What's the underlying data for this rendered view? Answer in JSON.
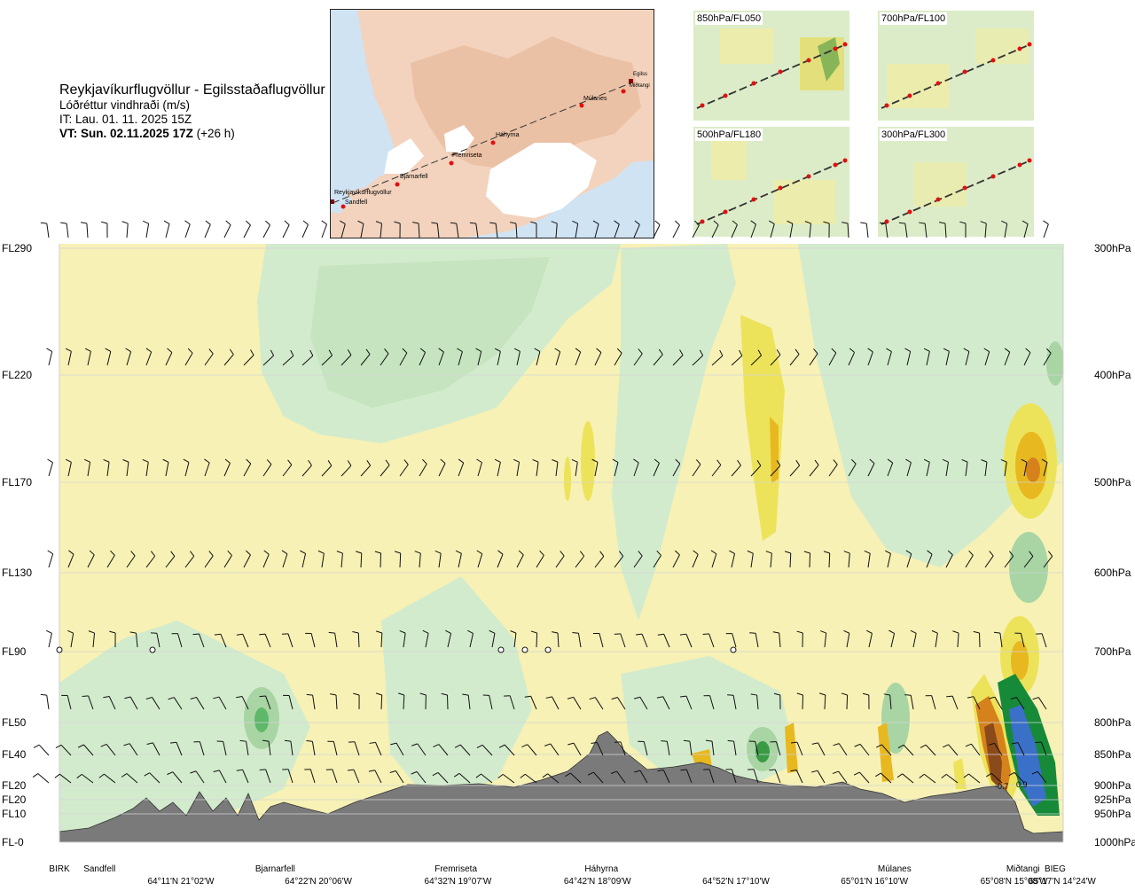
{
  "header": {
    "route": "Reykjavíkurflugvöllur - Egilsstaðaflugvöllur",
    "variable": "Lóðréttur vindhraði (m/s)",
    "it": "IT: Lau. 01. 11. 2025 15Z",
    "vt_bold": "VT: Sun. 02.11.2025 17Z",
    "vt_offset": " (+26 h)"
  },
  "map": {
    "waypoints": [
      "Reykjavíkurflugvöllur",
      "Sandfell",
      "Bjarnarfell",
      "Fremriseta",
      "Háhyrna",
      "Múlanes",
      "Miðtangi",
      "Egilss"
    ]
  },
  "minimaps": [
    {
      "label": "850hPa/FL050"
    },
    {
      "label": "700hPa/FL100"
    },
    {
      "label": "500hPa/FL180"
    },
    {
      "label": "300hPa/FL300"
    }
  ],
  "colors": {
    "up_light": "#f7f1b5",
    "up_mid": "#ece35a",
    "up_strong": "#e8b820",
    "up_stronger": "#d5821c",
    "up_max": "#8a4a1a",
    "down_light": "#d3ebcd",
    "down_mid": "#a8d5a3",
    "down_strong": "#5fb86a",
    "down_stronger": "#178a3a",
    "down_max": "#3a70c8",
    "terrain": "#7a7a7a"
  },
  "chart_data": {
    "type": "heatmap",
    "title": "Lóðréttur vindhraði (m/s)",
    "left_axis_levels": [
      {
        "fl": "FL290",
        "hpa": "300hPa"
      },
      {
        "fl": "FL220",
        "hpa": "400hPa"
      },
      {
        "fl": "FL170",
        "hpa": "500hPa"
      },
      {
        "fl": "FL130",
        "hpa": "600hPa"
      },
      {
        "fl": "FL90",
        "hpa": "700hPa"
      },
      {
        "fl": "FL50",
        "hpa": "800hPa"
      },
      {
        "fl": "FL40",
        "hpa": "850hPa"
      },
      {
        "fl": "FL20",
        "hpa": "900hPa"
      },
      {
        "fl": "FL20",
        "hpa": "925hPa"
      },
      {
        "fl": "FL10",
        "hpa": "950hPa"
      },
      {
        "fl": "FL-0",
        "hpa": "1000hPa"
      }
    ],
    "waypoints": [
      {
        "name": "BIRK",
        "pos": 0.0
      },
      {
        "name": "Sandfell",
        "pos": 0.04
      },
      {
        "name": "Bjarnarfell",
        "pos": 0.215
      },
      {
        "name": "Fremriseta",
        "pos": 0.395
      },
      {
        "name": "Háhyrna",
        "pos": 0.54
      },
      {
        "name": "Múlanes",
        "pos": 0.832
      },
      {
        "name": "Miðtangi",
        "pos": 0.96
      },
      {
        "name": "BIEG",
        "pos": 0.992
      }
    ],
    "coordinates": [
      {
        "text": "64°11'N 21°02'W",
        "pos": 0.121
      },
      {
        "text": "64°22'N 20°06'W",
        "pos": 0.258
      },
      {
        "text": "64°32'N 19°07'W",
        "pos": 0.397
      },
      {
        "text": "64°42'N 18°09'W",
        "pos": 0.536
      },
      {
        "text": "64°52'N 17°10'W",
        "pos": 0.674
      },
      {
        "text": "65°01'N 16°10'W",
        "pos": 0.812
      },
      {
        "text": "65°08'N 15°08'W",
        "pos": 0.951
      },
      {
        "text": "65°17'N 14°24'W",
        "pos": 1.0
      }
    ],
    "annotations": [
      "-0.7",
      "0.9"
    ]
  }
}
